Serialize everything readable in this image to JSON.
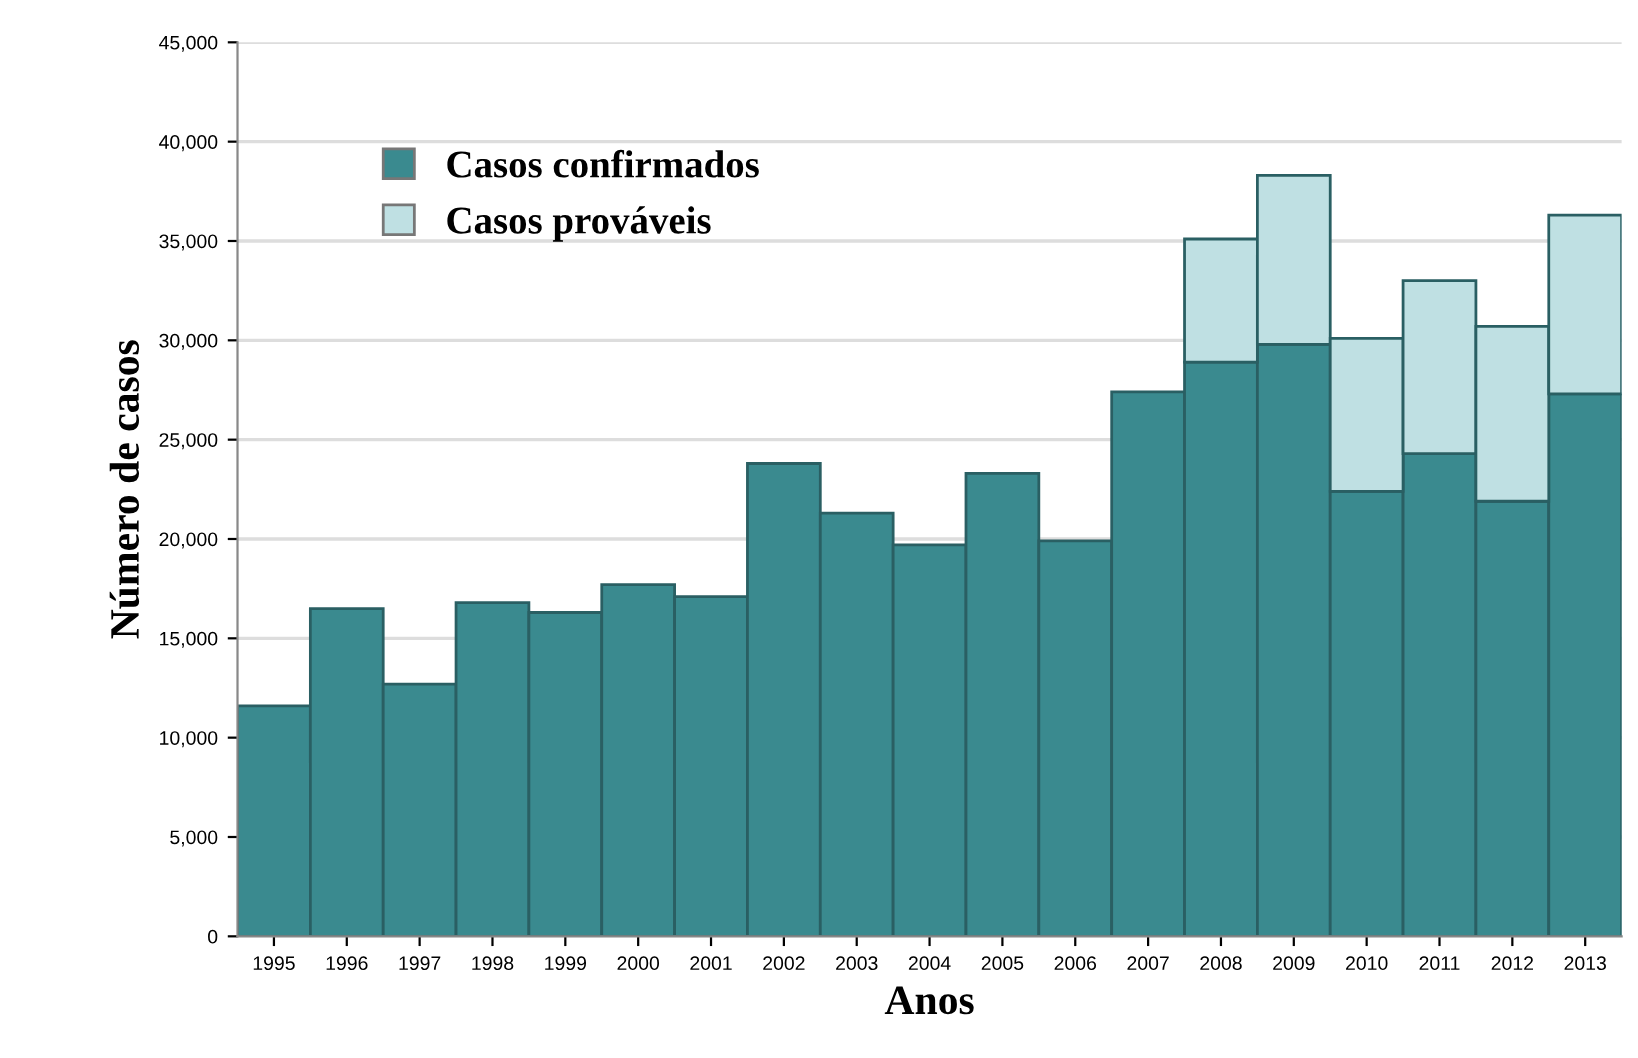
{
  "chart_data": {
    "type": "bar",
    "stacked": true,
    "xlabel": "Anos",
    "ylabel": "Número de casos",
    "categories": [
      "1995",
      "1996",
      "1997",
      "1998",
      "1999",
      "2000",
      "2001",
      "2002",
      "2003",
      "2004",
      "2005",
      "2006",
      "2007",
      "2008",
      "2009",
      "2010",
      "2011",
      "2012",
      "2013"
    ],
    "series": [
      {
        "name": "Casos confirmados",
        "color": "#3a8a8f",
        "values": [
          11600,
          16500,
          12700,
          16800,
          16300,
          17700,
          17100,
          23800,
          21300,
          19700,
          23300,
          19900,
          27400,
          28900,
          29800,
          22400,
          24300,
          21900,
          27300
        ]
      },
      {
        "name": "Casos prováveis",
        "color": "#bfe0e3",
        "values": [
          null,
          null,
          null,
          null,
          null,
          null,
          null,
          null,
          null,
          null,
          null,
          null,
          null,
          6200,
          8500,
          7700,
          8700,
          8800,
          9000
        ]
      }
    ],
    "ylim": [
      0,
      45000
    ],
    "yticks": [
      {
        "value": 0,
        "label": "0"
      },
      {
        "value": 5000,
        "label": "5,000"
      },
      {
        "value": 10000,
        "label": "10,000"
      },
      {
        "value": 15000,
        "label": "15,000"
      },
      {
        "value": 20000,
        "label": "20,000"
      },
      {
        "value": 25000,
        "label": "25,000"
      },
      {
        "value": 30000,
        "label": "30,000"
      },
      {
        "value": 35000,
        "label": "35,000"
      },
      {
        "value": 40000,
        "label": "40,000"
      },
      {
        "value": 45000,
        "label": "45,000"
      }
    ],
    "grid": "y",
    "legend": "top left"
  }
}
